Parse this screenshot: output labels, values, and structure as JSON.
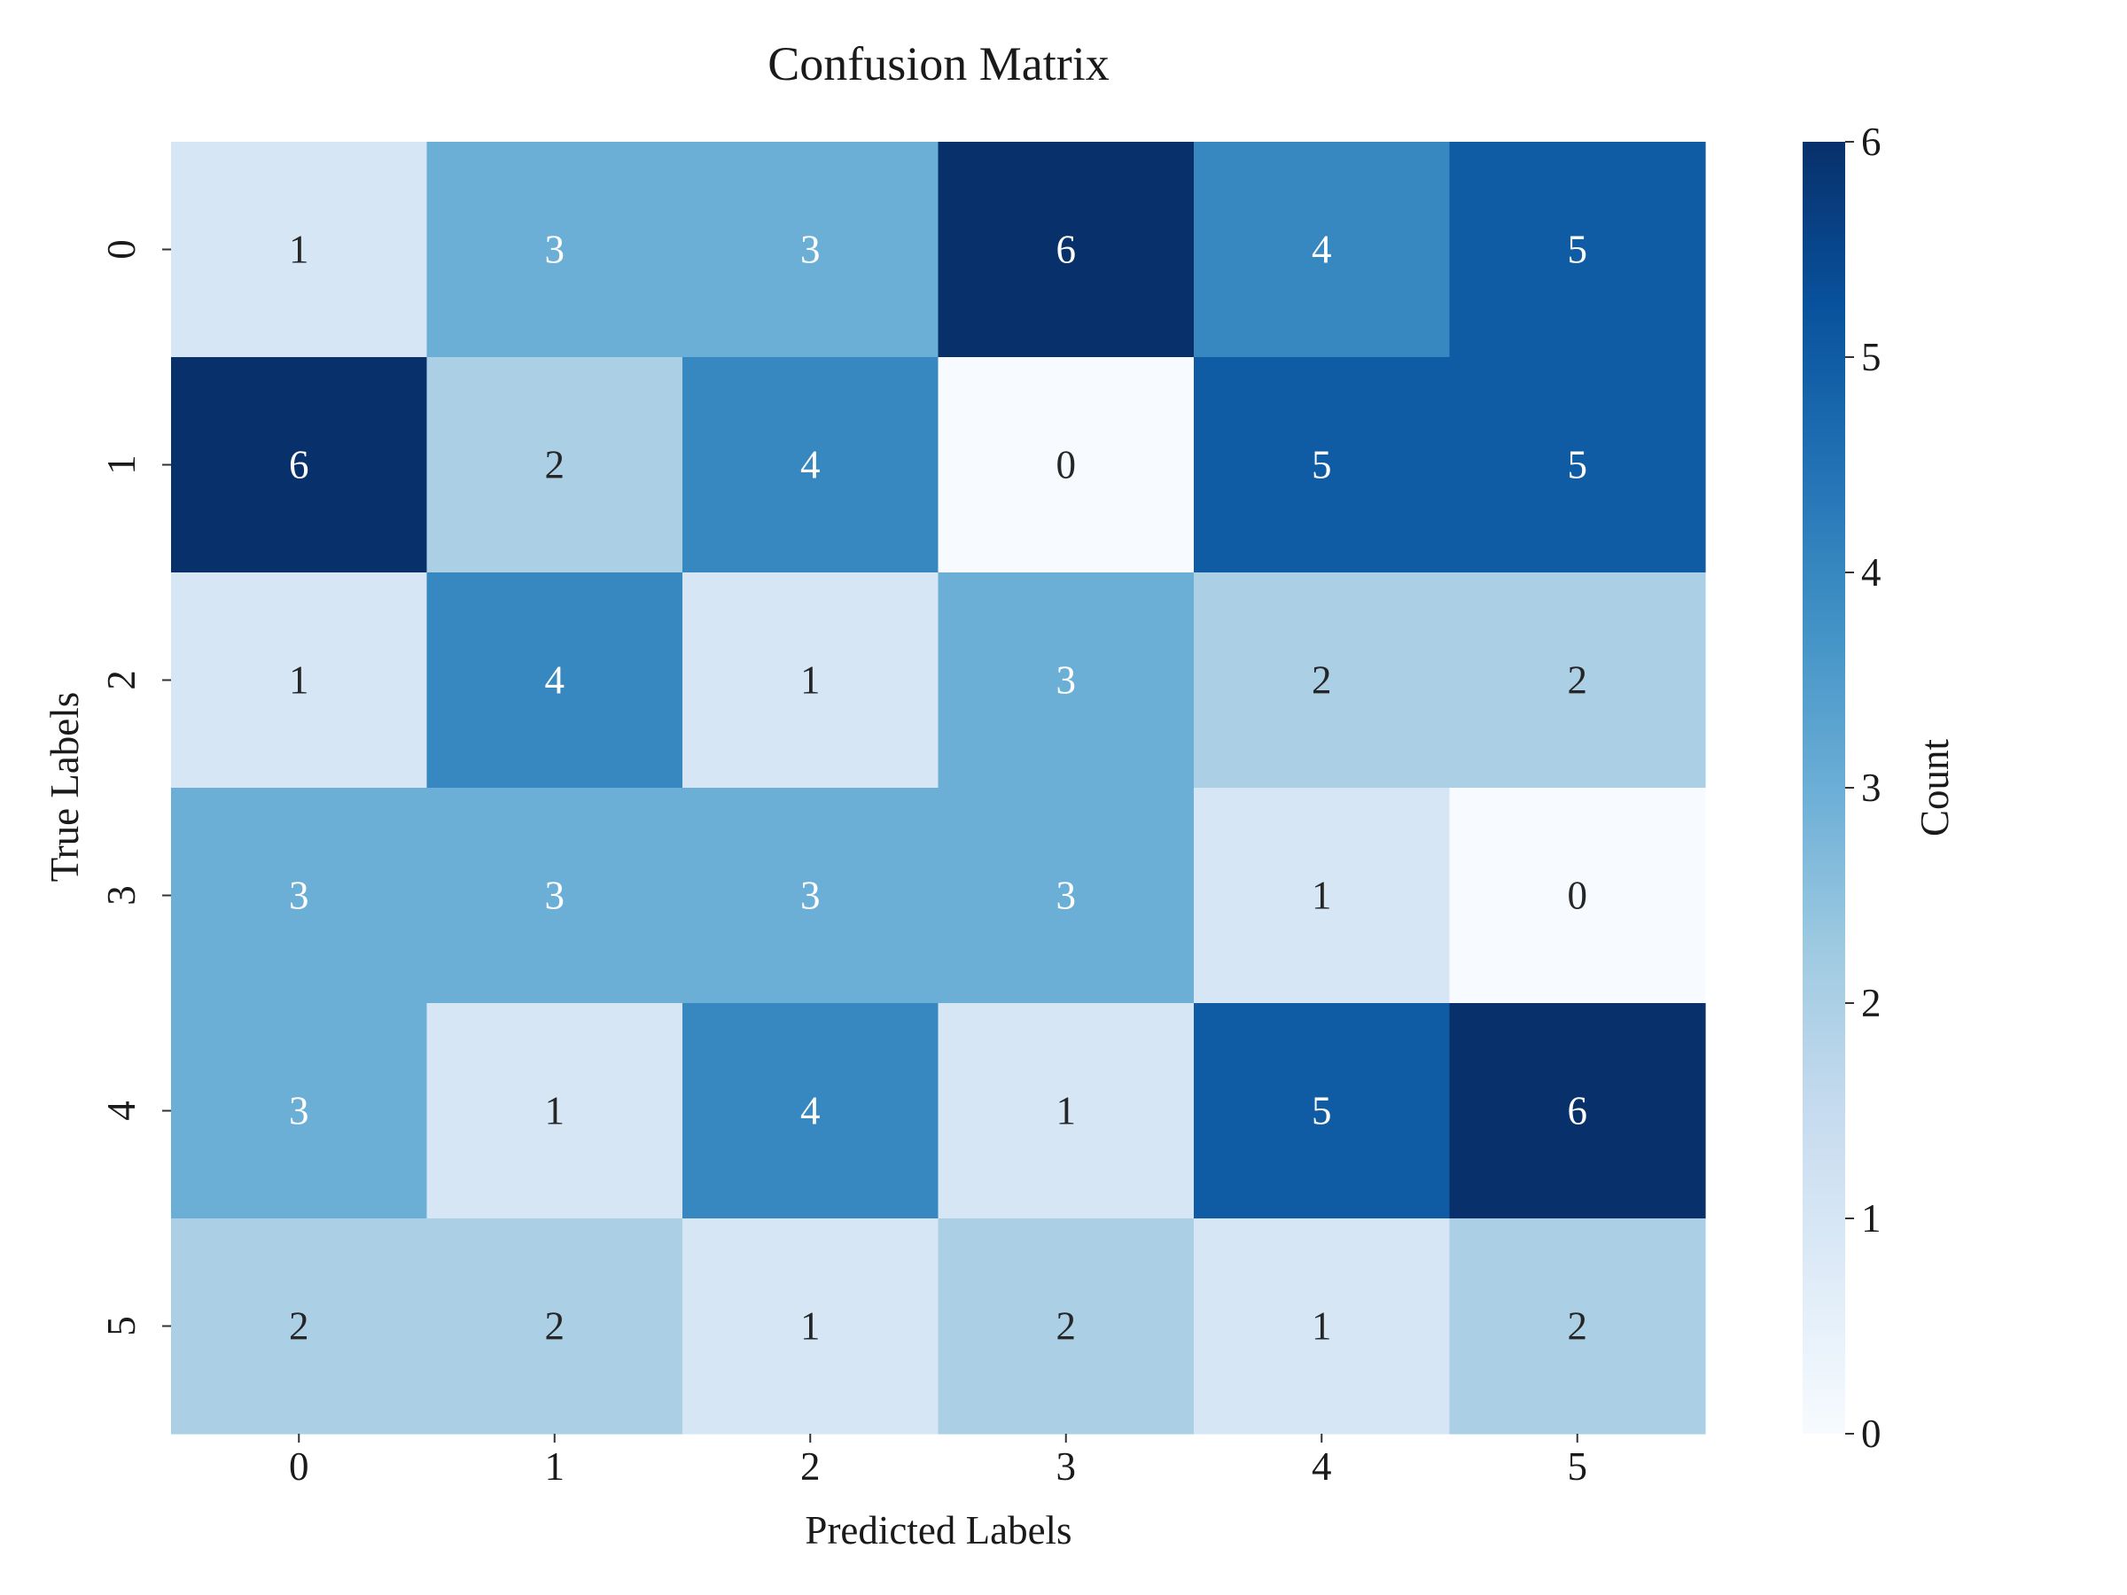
{
  "chart_data": {
    "type": "heatmap",
    "title": "Confusion Matrix",
    "xlabel": "Predicted Labels",
    "ylabel": "True Labels",
    "x_categories": [
      "0",
      "1",
      "2",
      "3",
      "4",
      "5"
    ],
    "y_categories": [
      "0",
      "1",
      "2",
      "3",
      "4",
      "5"
    ],
    "values": [
      [
        1,
        3,
        3,
        6,
        4,
        5
      ],
      [
        6,
        2,
        4,
        0,
        5,
        5
      ],
      [
        1,
        4,
        1,
        3,
        2,
        2
      ],
      [
        3,
        3,
        3,
        3,
        1,
        0
      ],
      [
        3,
        1,
        4,
        1,
        5,
        6
      ],
      [
        2,
        2,
        1,
        2,
        1,
        2
      ]
    ],
    "value_range": [
      0,
      6
    ],
    "colormap": "Blues",
    "colorbar": {
      "label": "Count",
      "ticks": [
        "0",
        "1",
        "2",
        "3",
        "4",
        "5",
        "6"
      ]
    },
    "annotations_shown": true
  }
}
